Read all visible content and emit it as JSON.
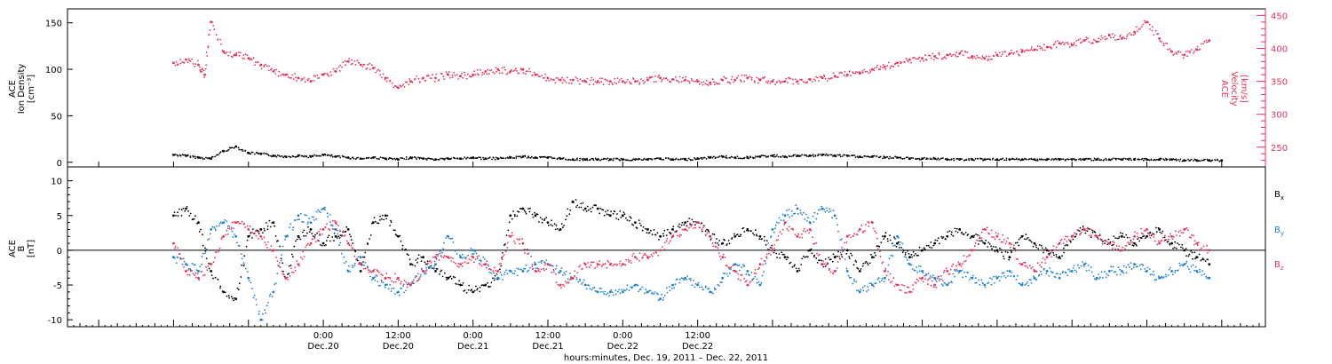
{
  "chart_data": [
    {
      "type": "scatter",
      "panel": "top",
      "ylabel_left": [
        "ACE",
        "Ion Density",
        "[cm⁻³]"
      ],
      "ylabel_right": [
        "ACE",
        "Velocity",
        "[km/s]"
      ],
      "ylim_left": [
        -5,
        165
      ],
      "yticks_left": [
        0,
        50,
        100,
        150
      ],
      "ylim_right": [
        220,
        460
      ],
      "yticks_right": [
        250,
        300,
        350,
        400,
        450
      ],
      "series": [
        {
          "axis": "left",
          "color": "#000000",
          "x": [
            0,
            2,
            4,
            6,
            8,
            10,
            12,
            14,
            16,
            18,
            20,
            22,
            24,
            26,
            28,
            30,
            32,
            34,
            36,
            38,
            40,
            42,
            44,
            46,
            48,
            50,
            52,
            54,
            56,
            58,
            60,
            62,
            64,
            66,
            68,
            70,
            72,
            74,
            76,
            78,
            80,
            82,
            84,
            86,
            88,
            90,
            92,
            94,
            96,
            98,
            100,
            102,
            104,
            106,
            108,
            110,
            112,
            114,
            116,
            118,
            120,
            122,
            124,
            126,
            128,
            130,
            132,
            134,
            136,
            138,
            140,
            142,
            144,
            146,
            148,
            150,
            152,
            154,
            156,
            158,
            160,
            162,
            164,
            166,
            168
          ],
          "values": [
            8,
            7,
            5,
            4,
            12,
            17,
            10,
            9,
            7,
            6,
            7,
            6,
            8,
            6,
            5,
            4,
            5,
            4,
            3,
            5,
            4,
            3,
            4,
            4,
            5,
            4,
            4,
            5,
            6,
            5,
            5,
            4,
            3,
            3,
            3,
            3,
            3,
            3,
            3,
            4,
            3,
            3,
            4,
            5,
            6,
            5,
            5,
            6,
            7,
            6,
            7,
            7,
            8,
            7,
            7,
            6,
            6,
            5,
            5,
            4,
            4,
            4,
            3,
            3,
            3,
            3,
            3,
            3,
            3,
            3,
            3,
            3,
            3,
            3,
            3,
            3,
            3,
            3,
            3,
            3,
            3,
            2,
            2,
            2,
            2
          ]
        },
        {
          "axis": "right",
          "color": "#e8335a",
          "x": [
            0,
            2,
            4,
            5,
            6,
            8,
            10,
            12,
            14,
            16,
            18,
            20,
            22,
            24,
            26,
            28,
            30,
            32,
            34,
            36,
            38,
            40,
            42,
            44,
            46,
            48,
            50,
            52,
            54,
            56,
            58,
            60,
            62,
            64,
            66,
            68,
            70,
            72,
            74,
            76,
            78,
            80,
            82,
            84,
            86,
            88,
            90,
            92,
            94,
            96,
            98,
            100,
            102,
            104,
            106,
            108,
            110,
            112,
            114,
            116,
            118,
            120,
            122,
            124,
            126,
            128,
            130,
            132,
            134,
            136,
            138,
            140,
            142,
            144,
            146,
            148,
            150,
            152,
            154,
            156,
            158,
            160,
            162,
            164,
            166
          ],
          "values": [
            378,
            383,
            375,
            360,
            440,
            395,
            390,
            385,
            375,
            365,
            360,
            355,
            350,
            360,
            365,
            380,
            375,
            370,
            355,
            340,
            350,
            355,
            355,
            360,
            358,
            360,
            365,
            368,
            365,
            368,
            360,
            355,
            352,
            352,
            350,
            350,
            350,
            350,
            350,
            352,
            355,
            353,
            352,
            350,
            348,
            352,
            352,
            355,
            352,
            350,
            350,
            350,
            353,
            355,
            358,
            360,
            362,
            368,
            372,
            378,
            383,
            385,
            388,
            390,
            392,
            388,
            385,
            390,
            392,
            395,
            398,
            402,
            408,
            405,
            412,
            410,
            420,
            415,
            425,
            440,
            415,
            395,
            390,
            398,
            412
          ]
        }
      ]
    },
    {
      "type": "scatter",
      "panel": "bottom",
      "ylabel": [
        "ACE",
        "B",
        "[nT]"
      ],
      "ylim": [
        -11,
        12
      ],
      "yticks": [
        -10,
        -5,
        0,
        5,
        10
      ],
      "zero_line": true,
      "series": [
        {
          "name": "Bₓ",
          "color": "#000000",
          "x": [
            0,
            2,
            4,
            6,
            8,
            10,
            12,
            14,
            16,
            18,
            20,
            22,
            24,
            26,
            28,
            30,
            32,
            34,
            36,
            38,
            40,
            42,
            44,
            46,
            48,
            50,
            52,
            54,
            56,
            58,
            60,
            62,
            64,
            66,
            68,
            70,
            72,
            74,
            76,
            78,
            80,
            82,
            84,
            86,
            88,
            90,
            92,
            94,
            96,
            98,
            100,
            102,
            104,
            106,
            108,
            110,
            112,
            114,
            116,
            118,
            120,
            122,
            124,
            126,
            128,
            130,
            132,
            134,
            136,
            138,
            140,
            142,
            144,
            146,
            148,
            150,
            152,
            154,
            156,
            158,
            160,
            162,
            164,
            166
          ],
          "values": [
            5,
            6,
            4,
            -3,
            -6,
            -7,
            2,
            3,
            4,
            -4,
            2,
            3,
            1,
            2,
            3,
            -3,
            4,
            5,
            2,
            -2,
            -1,
            -3,
            -4,
            -5,
            -6,
            -5,
            -4,
            5,
            6,
            5,
            4,
            3,
            7,
            6,
            6,
            5,
            5,
            4,
            3,
            2,
            3,
            4,
            4,
            2,
            1,
            2,
            3,
            2,
            0,
            -1,
            -3,
            0,
            -2,
            -1,
            0,
            -3,
            -1,
            2,
            1,
            -1,
            0,
            1,
            2,
            3,
            2,
            1,
            0,
            -1,
            2,
            1,
            0,
            -1,
            2,
            3,
            2,
            1,
            2,
            1,
            2,
            3,
            1,
            0,
            -1,
            -2
          ]
        },
        {
          "name": "Bᵧ",
          "color": "#1a7fd4",
          "x": [
            0,
            2,
            4,
            6,
            8,
            10,
            12,
            14,
            16,
            18,
            20,
            22,
            24,
            26,
            28,
            30,
            32,
            34,
            36,
            38,
            40,
            42,
            44,
            46,
            48,
            50,
            52,
            54,
            56,
            58,
            60,
            62,
            64,
            66,
            68,
            70,
            72,
            74,
            76,
            78,
            80,
            82,
            84,
            86,
            88,
            90,
            92,
            94,
            96,
            98,
            100,
            102,
            104,
            106,
            108,
            110,
            112,
            114,
            116,
            118,
            120,
            122,
            124,
            126,
            128,
            130,
            132,
            134,
            136,
            138,
            140,
            142,
            144,
            146,
            148,
            150,
            152,
            154,
            156,
            158,
            160,
            162,
            164,
            166
          ],
          "values": [
            -1,
            -2,
            -3,
            3,
            4,
            2,
            -4,
            -10,
            -6,
            2,
            5,
            4,
            6,
            3,
            -3,
            -1,
            -4,
            -5,
            -6,
            -5,
            -3,
            -2,
            2,
            -1,
            0,
            -2,
            -4,
            -3,
            -3,
            -2,
            -2,
            -3,
            -4,
            -5,
            -6,
            -6,
            -6,
            -5,
            -6,
            -7,
            -5,
            -4,
            -5,
            -6,
            -4,
            -2,
            -3,
            -5,
            3,
            5,
            6,
            4,
            6,
            5,
            -3,
            -6,
            -5,
            -4,
            2,
            -2,
            -3,
            -4,
            -5,
            -3,
            -4,
            -5,
            -4,
            -3,
            -5,
            -4,
            -3,
            -4,
            -3,
            -2,
            -4,
            -3,
            -3,
            -2,
            -3,
            -4,
            -3,
            -2,
            -3,
            -4
          ]
        },
        {
          "name": "Bₔ",
          "color": "#e8335a",
          "x": [
            0,
            2,
            4,
            6,
            8,
            10,
            12,
            14,
            16,
            18,
            20,
            22,
            24,
            26,
            28,
            30,
            32,
            34,
            36,
            38,
            40,
            42,
            44,
            46,
            48,
            50,
            52,
            54,
            56,
            58,
            60,
            62,
            64,
            66,
            68,
            70,
            72,
            74,
            76,
            78,
            80,
            82,
            84,
            86,
            88,
            90,
            92,
            94,
            96,
            98,
            100,
            102,
            104,
            106,
            108,
            110,
            112,
            114,
            116,
            118,
            120,
            122,
            124,
            126,
            128,
            130,
            132,
            134,
            136,
            138,
            140,
            142,
            144,
            146,
            148,
            150,
            152,
            154,
            156,
            158,
            160,
            162,
            164,
            166
          ],
          "values": [
            1,
            -3,
            -4,
            -2,
            2,
            4,
            3,
            2,
            0,
            -4,
            -2,
            1,
            3,
            4,
            1,
            -2,
            -3,
            -4,
            -4,
            -5,
            -3,
            -1,
            -1,
            -2,
            -1,
            -2,
            -3,
            2,
            1,
            -3,
            -2,
            -5,
            -4,
            -2,
            -2,
            -2,
            -2,
            -1,
            -1,
            0,
            2,
            3,
            4,
            2,
            -1,
            -3,
            -5,
            -2,
            0,
            4,
            2,
            3,
            -2,
            -3,
            2,
            3,
            4,
            -3,
            -5,
            -6,
            -4,
            -5,
            -3,
            -2,
            0,
            3,
            2,
            1,
            -2,
            -3,
            -1,
            1,
            2,
            3,
            2,
            1,
            0,
            2,
            3,
            1,
            2,
            3,
            1,
            0
          ]
        }
      ]
    }
  ],
  "x_axis": {
    "range_hours": [
      -17,
      175
    ],
    "major_ticks": [
      {
        "hour": 24,
        "time": "0:00",
        "date": "Dec.20"
      },
      {
        "hour": 36,
        "time": "12:00",
        "date": "Dec.20"
      },
      {
        "hour": 48,
        "time": "0:00",
        "date": "Dec.21"
      },
      {
        "hour": 60,
        "time": "12:00",
        "date": "Dec.21"
      },
      {
        "hour": 72,
        "time": "0:00",
        "date": "Dec.22"
      },
      {
        "hour": 84,
        "time": "12:00",
        "date": "Dec.22"
      }
    ],
    "title": "hours:minutes, Dec. 19, 2011 – Dec. 22, 2011"
  },
  "legend": {
    "bx_label": "B",
    "bx_sub": "x",
    "by_label": "B",
    "by_sub": "y",
    "bz_label": "B",
    "bz_sub": "z"
  }
}
